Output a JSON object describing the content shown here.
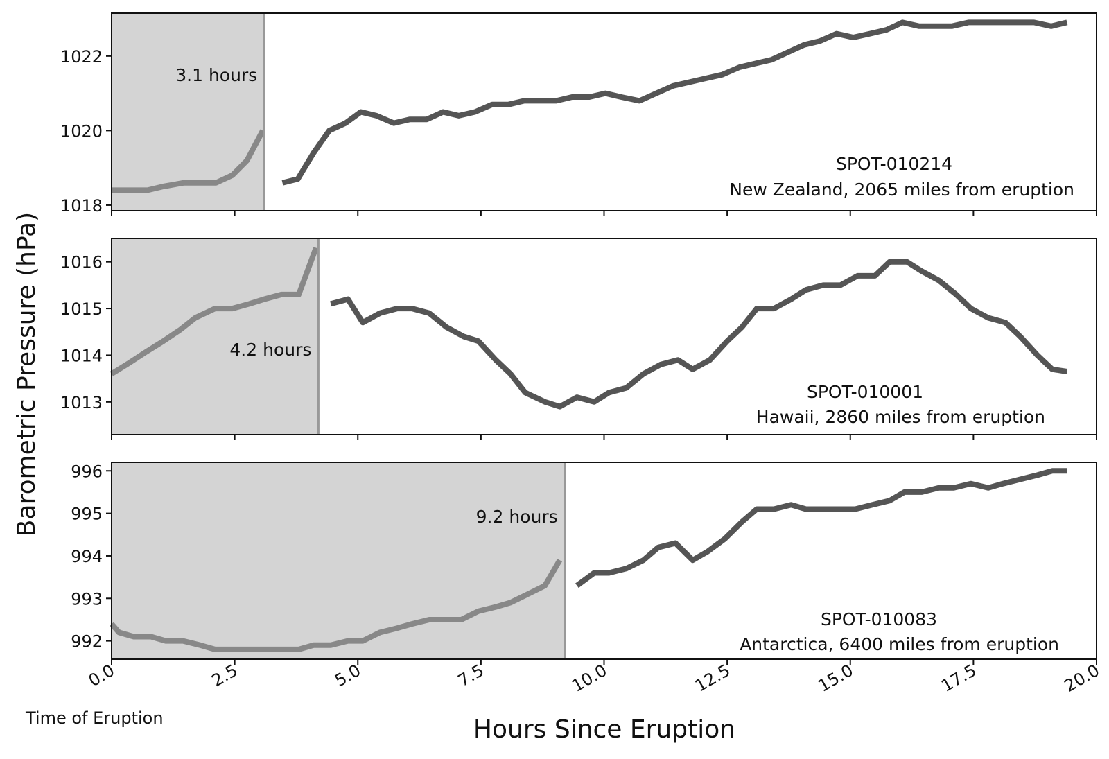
{
  "figure": {
    "ylabel": "Barometric Pressure (hPa)",
    "xlabel": "Hours Since Eruption",
    "eruption_label": "Time of Eruption",
    "colors": {
      "line": "#555555",
      "line_before": "#888888",
      "shade": "#d4d4d4",
      "marker": "#999999",
      "frame": "#111111"
    }
  },
  "chart_data": [
    {
      "type": "line",
      "station": "SPOT-010214",
      "location": "New Zealand, 2065 miles from eruption",
      "arrival_label": "3.1 hours",
      "arrival": 3.1,
      "xlim": [
        0,
        20
      ],
      "ylim": [
        1017.85,
        1023.15
      ],
      "yticks": [
        1018,
        1020,
        1022
      ],
      "x": [
        0,
        0.33,
        0.73,
        1.05,
        1.47,
        1.84,
        2.12,
        2.45,
        2.75,
        3.07,
        3.47,
        3.78,
        4.1,
        4.42,
        4.75,
        5.06,
        5.38,
        5.73,
        6.05,
        6.4,
        6.73,
        7.05,
        7.38,
        7.73,
        8.06,
        8.38,
        8.72,
        9.03,
        9.35,
        9.7,
        10.03,
        10.35,
        10.72,
        11.06,
        11.4,
        11.73,
        12.06,
        12.4,
        12.75,
        13.07,
        13.4,
        13.73,
        14.06,
        14.38,
        14.72,
        15.06,
        15.4,
        15.73,
        16.06,
        16.4,
        16.75,
        17.06,
        17.4,
        17.75,
        18.08,
        18.4,
        18.73,
        19.08,
        19.4
      ],
      "y": [
        1018.4,
        1018.4,
        1018.4,
        1018.5,
        1018.6,
        1018.6,
        1018.6,
        1018.8,
        1019.2,
        1020.0,
        1018.6,
        1018.7,
        1019.4,
        1020.0,
        1020.2,
        1020.5,
        1020.4,
        1020.2,
        1020.3,
        1020.3,
        1020.5,
        1020.4,
        1020.5,
        1020.7,
        1020.7,
        1020.8,
        1020.8,
        1020.8,
        1020.9,
        1020.9,
        1021.0,
        1020.9,
        1020.8,
        1021.0,
        1021.2,
        1021.3,
        1021.4,
        1021.5,
        1021.7,
        1021.8,
        1021.9,
        1022.1,
        1022.3,
        1022.4,
        1022.6,
        1022.5,
        1022.6,
        1022.7,
        1022.9,
        1022.8,
        1022.8,
        1022.8,
        1022.9,
        1022.9,
        1022.9,
        1022.9,
        1022.9,
        1022.8,
        1022.9
      ]
    },
    {
      "type": "line",
      "station": "SPOT-010001",
      "location": "Hawaii, 2860 miles from eruption",
      "arrival_label": "4.2 hours",
      "arrival": 4.2,
      "xlim": [
        0,
        20
      ],
      "ylim": [
        1012.3,
        1016.5
      ],
      "yticks": [
        1013,
        1014,
        1015,
        1016
      ],
      "x": [
        0,
        0.35,
        0.7,
        1.05,
        1.4,
        1.7,
        2.1,
        2.45,
        2.8,
        3.1,
        3.45,
        3.8,
        4.15,
        4.45,
        4.8,
        5.1,
        5.45,
        5.8,
        6.1,
        6.45,
        6.8,
        7.15,
        7.45,
        7.8,
        8.1,
        8.4,
        8.8,
        9.1,
        9.45,
        9.8,
        10.1,
        10.45,
        10.8,
        11.15,
        11.5,
        11.8,
        12.15,
        12.5,
        12.8,
        13.1,
        13.45,
        13.8,
        14.1,
        14.45,
        14.8,
        15.15,
        15.5,
        15.8,
        16.15,
        16.45,
        16.8,
        17.15,
        17.45,
        17.8,
        18.15,
        18.45,
        18.8,
        19.1,
        19.4
      ],
      "y": [
        1013.6,
        1013.83,
        1014.07,
        1014.3,
        1014.55,
        1014.8,
        1015.0,
        1015.0,
        1015.1,
        1015.2,
        1015.3,
        1015.3,
        1016.3,
        1015.1,
        1015.2,
        1014.7,
        1014.9,
        1015.0,
        1015.0,
        1014.9,
        1014.6,
        1014.4,
        1014.3,
        1013.9,
        1013.6,
        1013.2,
        1013.0,
        1012.9,
        1013.1,
        1013.0,
        1013.2,
        1013.3,
        1013.6,
        1013.8,
        1013.9,
        1013.7,
        1013.9,
        1014.3,
        1014.6,
        1015.0,
        1015.0,
        1015.2,
        1015.4,
        1015.5,
        1015.5,
        1015.7,
        1015.7,
        1016.0,
        1016.0,
        1015.8,
        1015.6,
        1015.3,
        1015.0,
        1014.8,
        1014.7,
        1014.4,
        1014.0,
        1013.7,
        1013.65
      ]
    },
    {
      "type": "line",
      "station": "SPOT-010083",
      "location": "Antarctica, 6400 miles from eruption",
      "arrival_label": "9.2 hours",
      "arrival": 9.2,
      "xlim": [
        0,
        20
      ],
      "ylim": [
        991.57,
        996.2
      ],
      "yticks": [
        992,
        993,
        994,
        995,
        996
      ],
      "x": [
        0,
        0.15,
        0.45,
        0.8,
        1.1,
        1.45,
        1.8,
        2.1,
        2.45,
        2.8,
        3.1,
        3.45,
        3.8,
        4.1,
        4.45,
        4.8,
        5.1,
        5.45,
        5.8,
        6.1,
        6.45,
        6.8,
        7.1,
        7.45,
        7.8,
        8.1,
        8.45,
        8.8,
        9.1,
        9.45,
        9.8,
        10.1,
        10.45,
        10.8,
        11.1,
        11.45,
        11.8,
        12.1,
        12.45,
        12.8,
        13.1,
        13.45,
        13.8,
        14.1,
        14.45,
        14.8,
        15.1,
        15.45,
        15.8,
        16.1,
        16.45,
        16.8,
        17.1,
        17.45,
        17.8,
        18.1,
        18.45,
        18.8,
        19.1,
        19.4
      ],
      "y": [
        992.4,
        992.2,
        992.1,
        992.1,
        992.0,
        992.0,
        991.9,
        991.8,
        991.8,
        991.8,
        991.8,
        991.8,
        991.8,
        991.9,
        991.9,
        992.0,
        992.0,
        992.2,
        992.3,
        992.4,
        992.5,
        992.5,
        992.5,
        992.7,
        992.8,
        992.9,
        993.1,
        993.3,
        993.9,
        993.3,
        993.6,
        993.6,
        993.7,
        993.9,
        994.2,
        994.3,
        993.9,
        994.1,
        994.4,
        994.8,
        995.1,
        995.1,
        995.2,
        995.1,
        995.1,
        995.1,
        995.1,
        995.2,
        995.3,
        995.5,
        995.5,
        995.6,
        995.6,
        995.7,
        995.6,
        995.7,
        995.8,
        995.9,
        996.0,
        996.0
      ]
    }
  ],
  "xticks": [
    {
      "value": 0,
      "label": "0.0"
    },
    {
      "value": 2.5,
      "label": "2.5"
    },
    {
      "value": 5,
      "label": "5.0"
    },
    {
      "value": 7.5,
      "label": "7.5"
    },
    {
      "value": 10,
      "label": "10.0"
    },
    {
      "value": 12.5,
      "label": "12.5"
    },
    {
      "value": 15,
      "label": "15.0"
    },
    {
      "value": 17.5,
      "label": "17.5"
    },
    {
      "value": 20,
      "label": "20.0"
    }
  ]
}
